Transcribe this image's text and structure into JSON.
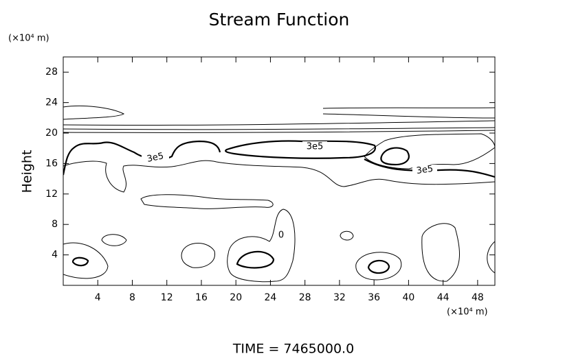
{
  "chart_data": {
    "type": "contour",
    "title": "Stream Function",
    "y_label": "Height",
    "x_unit": "(×10⁴ m)",
    "y_unit": "(×10⁴ m)",
    "footer": "TIME = 7465000.0",
    "xlim": [
      0,
      50
    ],
    "ylim": [
      0,
      30
    ],
    "xticks": [
      4,
      8,
      12,
      16,
      20,
      24,
      28,
      32,
      36,
      40,
      44,
      48
    ],
    "yticks": [
      4,
      8,
      12,
      16,
      20,
      24,
      28
    ],
    "contour_labels": [
      "3e5",
      "3e5",
      "3e5",
      "0"
    ]
  }
}
